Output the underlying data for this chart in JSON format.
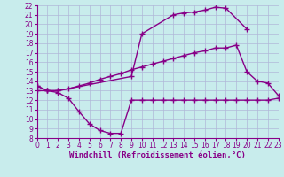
{
  "bg_color": "#c8ecec",
  "grid_color": "#b0b8d8",
  "line_color": "#880088",
  "line_width": 1.0,
  "marker": "+",
  "marker_size": 4,
  "xlim": [
    0,
    23
  ],
  "ylim": [
    8,
    22
  ],
  "xticks": [
    0,
    1,
    2,
    3,
    4,
    5,
    6,
    7,
    8,
    9,
    10,
    11,
    12,
    13,
    14,
    15,
    16,
    17,
    18,
    19,
    20,
    21,
    22,
    23
  ],
  "yticks": [
    8,
    9,
    10,
    11,
    12,
    13,
    14,
    15,
    16,
    17,
    18,
    19,
    20,
    21,
    22
  ],
  "xlabel": "Windchill (Refroidissement éolien,°C)",
  "xlabel_fontsize": 6.5,
  "tick_fontsize": 5.5,
  "line1_x": [
    0,
    1,
    2,
    9,
    10,
    13,
    14,
    15,
    16,
    17,
    18,
    20
  ],
  "line1_y": [
    13.5,
    13.0,
    13.0,
    14.5,
    19.0,
    21.0,
    21.2,
    21.3,
    21.5,
    21.8,
    21.7,
    19.5
  ],
  "line2_x": [
    0,
    1,
    2,
    3,
    4,
    5,
    6,
    7,
    8,
    9,
    10,
    11,
    12,
    13,
    14,
    15,
    16,
    17,
    18,
    19,
    20,
    21,
    22,
    23
  ],
  "line2_y": [
    13.0,
    13.0,
    12.8,
    12.2,
    10.8,
    9.5,
    8.8,
    8.5,
    8.5,
    12.0,
    12.0,
    12.0,
    12.0,
    12.0,
    12.0,
    12.0,
    12.0,
    12.0,
    12.0,
    12.0,
    12.0,
    12.0,
    12.0,
    12.2
  ],
  "line3_x": [
    0,
    1,
    2,
    3,
    4,
    5,
    6,
    7,
    8,
    9,
    10,
    11,
    12,
    13,
    14,
    15,
    16,
    17,
    18,
    19,
    20,
    21,
    22,
    23
  ],
  "line3_y": [
    13.5,
    13.0,
    13.0,
    13.2,
    13.5,
    13.8,
    14.2,
    14.5,
    14.8,
    15.2,
    15.5,
    15.8,
    16.1,
    16.4,
    16.7,
    17.0,
    17.2,
    17.5,
    17.5,
    17.8,
    15.0,
    14.0,
    13.8,
    12.5
  ]
}
